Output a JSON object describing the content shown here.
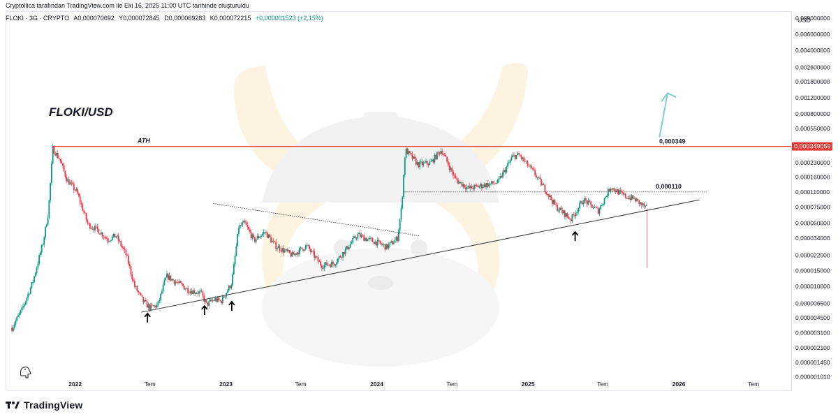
{
  "header": {
    "credit": "Cryptollica tarafından TradingView.com ile Eki 16, 2025 11:00 UTC tarihinde oluşturuldu"
  },
  "legend": {
    "symbol": "FLOKI · 3G · CRYPTO",
    "open": "A0,000070692",
    "high": "Y0,000072845",
    "low": "D0,000069283",
    "close": "K0,000072215",
    "change": "+0,000001523 (+2,15%)"
  },
  "footer": {
    "brand": "TradingView",
    "logo_icon": "tradingview-logo-icon"
  },
  "colors": {
    "up": "#089981",
    "down": "#f23645",
    "ath": "#e53935",
    "arrow_teal": "#7ecfc9",
    "mascot": "#f5a623"
  },
  "chart_data": {
    "type": "candlestick",
    "title": "FLOKI/USD",
    "currency": "USD",
    "y_scale": "log",
    "x_axis": {
      "tick_labels": [
        "2022",
        "Tem",
        "2023",
        "Tem",
        "2024",
        "Tem",
        "2025",
        "Tem",
        "2026",
        "Tem"
      ],
      "tick_dates": [
        "2022-01-01",
        "2022-07-01",
        "2023-01-01",
        "2023-07-01",
        "2024-01-01",
        "2024-07-01",
        "2025-01-01",
        "2025-07-01",
        "2026-01-01",
        "2026-07-01"
      ],
      "range": [
        "2021-07-20",
        "2026-09-30"
      ]
    },
    "y_axis": {
      "tick_labels": [
        "0,009000000",
        "0,006000000",
        "0,004000000",
        "0,002600000",
        "0,001800000",
        "0,001200000",
        "0,000800000",
        "0,000550000",
        "0,000349059",
        "0,000230000",
        "0,000160000",
        "0,000110000",
        "0,000075000",
        "0,000050000",
        "0,000034000",
        "0,000022000",
        "0,000015000",
        "0,000010000",
        "0,000006500",
        "0,000004500",
        "0,000003100",
        "0,000002100",
        "0,000001450",
        "0,000001010"
      ],
      "tick_values": [
        0.009,
        0.006,
        0.004,
        0.0026,
        0.0018,
        0.0012,
        0.0008,
        0.00055,
        0.000349059,
        0.00023,
        0.00016,
        0.00011,
        7.5e-05,
        5e-05,
        3.4e-05,
        2.2e-05,
        1.5e-05,
        1e-05,
        6.5e-06,
        4.5e-06,
        3.1e-06,
        2.1e-06,
        1.45e-06,
        1.01e-06
      ],
      "range": [
        9.5e-07,
        0.0106
      ]
    },
    "close_series": [
      [
        "2021-08-01",
        3.5e-06
      ],
      [
        "2021-08-25",
        5.5e-06
      ],
      [
        "2021-09-20",
        1.1e-05
      ],
      [
        "2021-10-15",
        3e-05
      ],
      [
        "2021-10-28",
        6.5e-05
      ],
      [
        "2021-11-08",
        0.00033
      ],
      [
        "2021-11-25",
        0.00025
      ],
      [
        "2021-12-12",
        0.00015
      ],
      [
        "2022-01-05",
        0.00011
      ],
      [
        "2022-02-01",
        4.8e-05
      ],
      [
        "2022-02-25",
        4.2e-05
      ],
      [
        "2022-03-20",
        3.3e-05
      ],
      [
        "2022-04-10",
        3.6e-05
      ],
      [
        "2022-05-05",
        2.2e-05
      ],
      [
        "2022-05-25",
        1e-05
      ],
      [
        "2022-06-15",
        6.8e-06
      ],
      [
        "2022-07-01",
        5.8e-06
      ],
      [
        "2022-07-20",
        6.2e-06
      ],
      [
        "2022-08-10",
        1.3e-05
      ],
      [
        "2022-09-05",
        1.1e-05
      ],
      [
        "2022-10-05",
        9e-06
      ],
      [
        "2022-11-01",
        8.5e-06
      ],
      [
        "2022-11-15",
        6.3e-06
      ],
      [
        "2022-12-05",
        7.2e-06
      ],
      [
        "2022-12-20",
        6.8e-06
      ],
      [
        "2023-01-15",
        1.1e-05
      ],
      [
        "2023-02-01",
        4.5e-05
      ],
      [
        "2023-02-15",
        5e-05
      ],
      [
        "2023-03-10",
        3.2e-05
      ],
      [
        "2023-04-05",
        4e-05
      ],
      [
        "2023-05-01",
        2.8e-05
      ],
      [
        "2023-06-10",
        2.2e-05
      ],
      [
        "2023-07-15",
        2.8e-05
      ],
      [
        "2023-08-20",
        1.7e-05
      ],
      [
        "2023-09-20",
        1.8e-05
      ],
      [
        "2023-10-20",
        2.6e-05
      ],
      [
        "2023-11-15",
        3.7e-05
      ],
      [
        "2023-12-10",
        3.3e-05
      ],
      [
        "2024-01-05",
        3e-05
      ],
      [
        "2024-01-25",
        2.7e-05
      ],
      [
        "2024-02-20",
        3.4e-05
      ],
      [
        "2024-03-01",
        7.5e-05
      ],
      [
        "2024-03-10",
        0.00032
      ],
      [
        "2024-04-10",
        0.00022
      ],
      [
        "2024-05-10",
        0.00023
      ],
      [
        "2024-06-05",
        0.00032
      ],
      [
        "2024-07-10",
        0.00015
      ],
      [
        "2024-08-10",
        0.00012
      ],
      [
        "2024-09-15",
        0.00013
      ],
      [
        "2024-10-20",
        0.00014
      ],
      [
        "2024-11-25",
        0.00027
      ],
      [
        "2024-12-10",
        0.00028
      ],
      [
        "2025-01-15",
        0.00018
      ],
      [
        "2025-02-10",
        0.00012
      ],
      [
        "2025-03-10",
        7.5e-05
      ],
      [
        "2025-04-15",
        5.5e-05
      ],
      [
        "2025-05-15",
        9e-05
      ],
      [
        "2025-06-20",
        6.8e-05
      ],
      [
        "2025-07-20",
        0.000125
      ],
      [
        "2025-08-20",
        0.0001
      ],
      [
        "2025-09-15",
        9.2e-05
      ],
      [
        "2025-10-16",
        7.2e-05
      ]
    ],
    "price_lines": [
      {
        "name": "ATH",
        "value": 0.000349059,
        "label": "0,000349"
      },
      {
        "name": "resistance",
        "value": 0.00011,
        "label": "0,000110"
      }
    ],
    "trendlines": [
      {
        "type": "support",
        "points": [
          [
            "2022-06-10",
            5.2e-06
          ],
          [
            "2026-02-20",
            9e-05
          ]
        ]
      },
      {
        "type": "descending",
        "points": [
          [
            "2022-12-01",
            8.2e-05
          ],
          [
            "2024-04-15",
            3.6e-05
          ]
        ]
      }
    ],
    "annotations": [
      {
        "type": "text",
        "text": "FLOKI/USD"
      },
      {
        "type": "text",
        "text": "ATH"
      },
      {
        "type": "arrow-up",
        "date": "2022-06-25",
        "value": 4.3e-06
      },
      {
        "type": "arrow-up",
        "date": "2022-11-10",
        "value": 5.2e-06
      },
      {
        "type": "arrow-up",
        "date": "2023-01-15",
        "value": 5.8e-06
      },
      {
        "type": "arrow-up",
        "date": "2025-04-25",
        "value": 3.4e-05
      },
      {
        "type": "target-arrow",
        "from": [
          "2025-11-15",
          0.00044
        ],
        "to": [
          "2025-12-05",
          0.00135
        ]
      }
    ],
    "badge": {
      "label": "0,000349059",
      "value": 0.000349059
    }
  }
}
